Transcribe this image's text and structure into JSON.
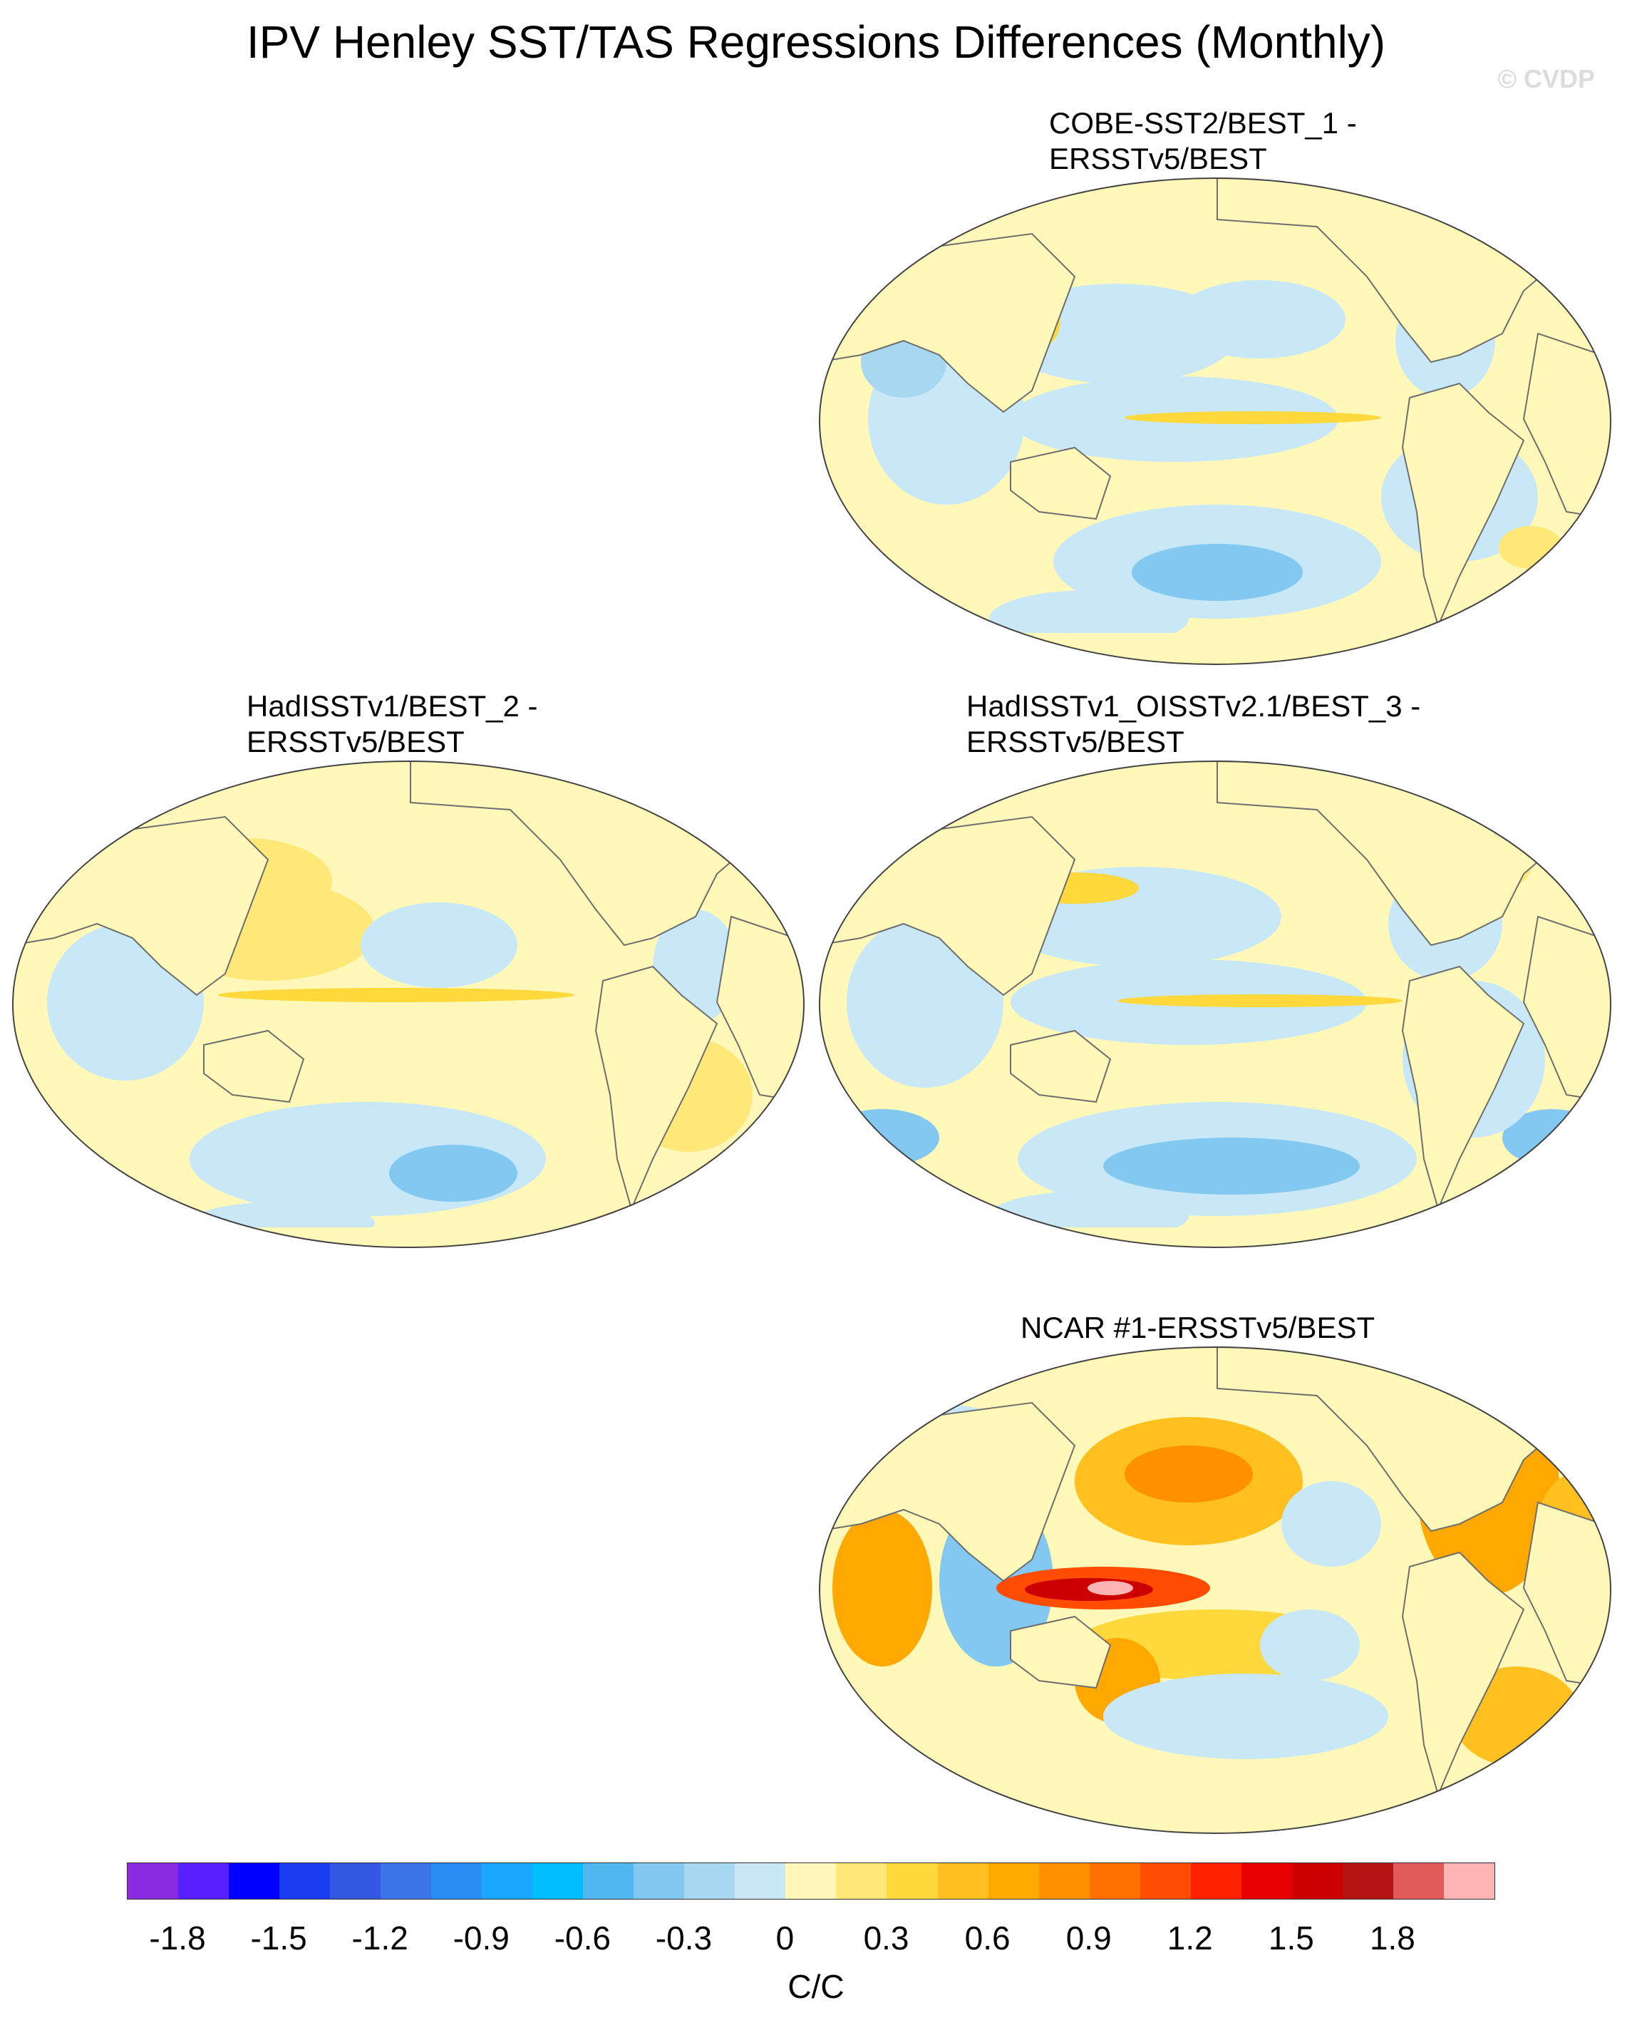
{
  "title": "IPV Henley SST/TAS Regressions Differences (Monthly)",
  "watermark": "© CVDP",
  "panels": [
    {
      "title_line1": "COBE-SST2/BEST_1 -",
      "title_line2": "ERSSTv5/BEST"
    },
    {
      "title_line1": "HadISSTv1/BEST_2 -",
      "title_line2": "ERSSTv5/BEST"
    },
    {
      "title_line1": "HadISSTv1_OISSTv2.1/BEST_3 -",
      "title_line2": "ERSSTv5/BEST"
    },
    {
      "title_line1": "NCAR #1-ERSSTv5/BEST",
      "title_line2": ""
    }
  ],
  "colorbar": {
    "colors": [
      "#8a2be2",
      "#5a1fff",
      "#0000ff",
      "#1a3cf0",
      "#3357e0",
      "#3a74e8",
      "#2a8cf5",
      "#1aa6ff",
      "#00bfff",
      "#4fb8f0",
      "#82c8f0",
      "#a8d8f0",
      "#c8e8f8",
      "#fff8b8",
      "#ffe878",
      "#ffd83c",
      "#ffc020",
      "#ffa800",
      "#ff9000",
      "#ff7000",
      "#ff4c00",
      "#ff2000",
      "#e60000",
      "#cc0000",
      "#b41414",
      "#e05a5a",
      "#ffb4b4"
    ],
    "tick_labels": [
      "-1.8",
      "-1.5",
      "-1.2",
      "-0.9",
      "-0.6",
      "-0.3",
      "0",
      "0.3",
      "0.6",
      "0.9",
      "1.2",
      "1.5",
      "1.8"
    ],
    "units": "C/C"
  }
}
